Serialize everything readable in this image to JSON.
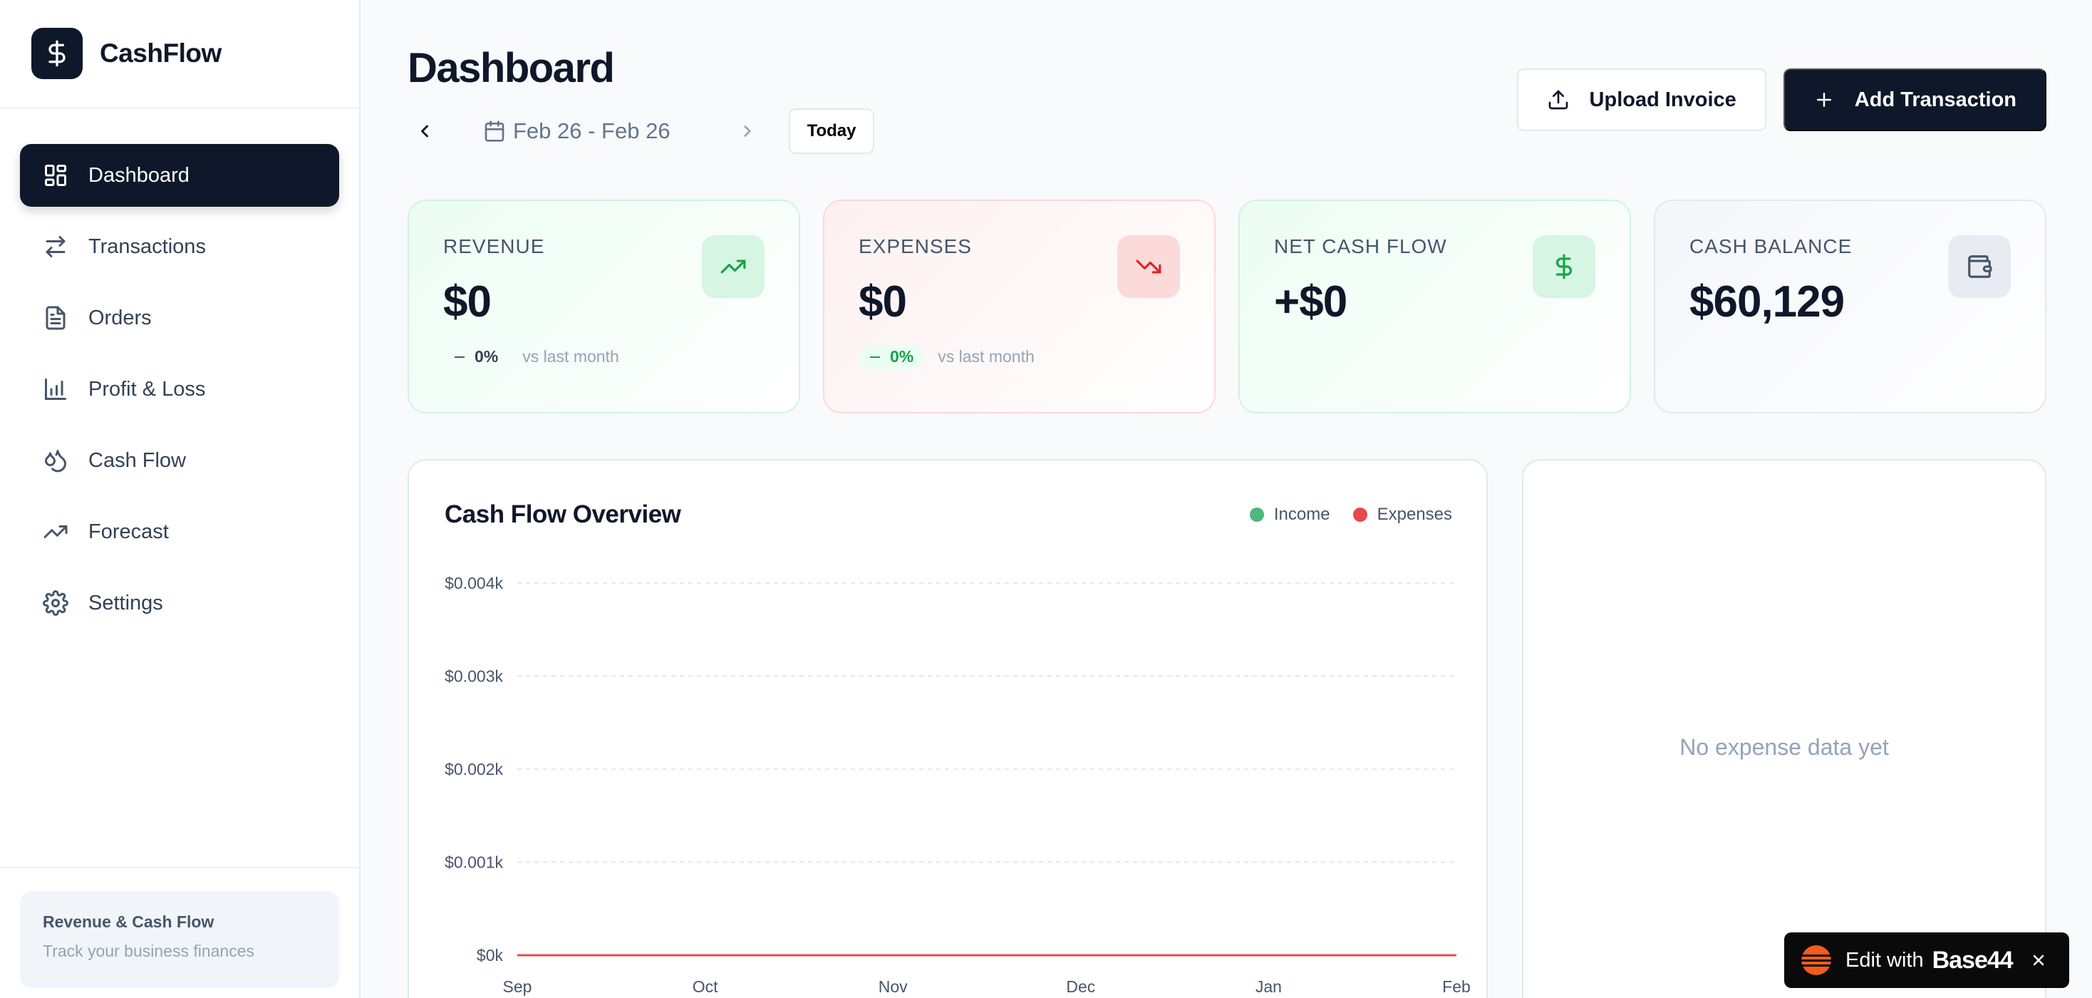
{
  "brand": {
    "name": "CashFlow"
  },
  "sidebar": {
    "items": [
      {
        "label": "Dashboard",
        "icon": "dashboard-icon",
        "active": true
      },
      {
        "label": "Transactions",
        "icon": "transactions-icon"
      },
      {
        "label": "Orders",
        "icon": "orders-icon"
      },
      {
        "label": "Profit & Loss",
        "icon": "bar-chart-icon"
      },
      {
        "label": "Cash Flow",
        "icon": "droplets-icon"
      },
      {
        "label": "Forecast",
        "icon": "trending-up-icon"
      },
      {
        "label": "Settings",
        "icon": "gear-icon"
      }
    ],
    "footer": {
      "title": "Revenue & Cash Flow",
      "subtitle": "Track your business finances"
    }
  },
  "header": {
    "title": "Dashboard",
    "date_range": "Feb 26 - Feb 26",
    "today_label": "Today",
    "upload_label": "Upload Invoice",
    "add_label": "Add Transaction"
  },
  "stats": {
    "revenue": {
      "label": "REVENUE",
      "value": "$0",
      "change": "0%",
      "change_suffix": "vs last month"
    },
    "expenses": {
      "label": "EXPENSES",
      "value": "$0",
      "change": "0%",
      "change_suffix": "vs last month"
    },
    "net": {
      "label": "NET CASH FLOW",
      "value": "+$0"
    },
    "balance": {
      "label": "CASH BALANCE",
      "value": "$60,129"
    }
  },
  "colors": {
    "income": "#4cb87e",
    "expenses": "#e5484d",
    "primary": "#0f172a"
  },
  "chart_data": {
    "type": "line",
    "title": "Cash Flow Overview",
    "categories": [
      "Sep",
      "Oct",
      "Nov",
      "Dec",
      "Jan",
      "Feb"
    ],
    "series": [
      {
        "name": "Income",
        "values": [
          0,
          0,
          0,
          0,
          0,
          0
        ]
      },
      {
        "name": "Expenses",
        "values": [
          0,
          0,
          0,
          0,
          0,
          0
        ]
      }
    ],
    "yticks": [
      "$0k",
      "$0.001k",
      "$0.002k",
      "$0.003k",
      "$0.004k"
    ],
    "ylim": [
      0,
      0.004
    ],
    "grid": true,
    "legend": "top-right"
  },
  "side_panel": {
    "empty_message": "No expense data yet"
  },
  "badge": {
    "text": "Edit with",
    "brand": "Base44"
  }
}
